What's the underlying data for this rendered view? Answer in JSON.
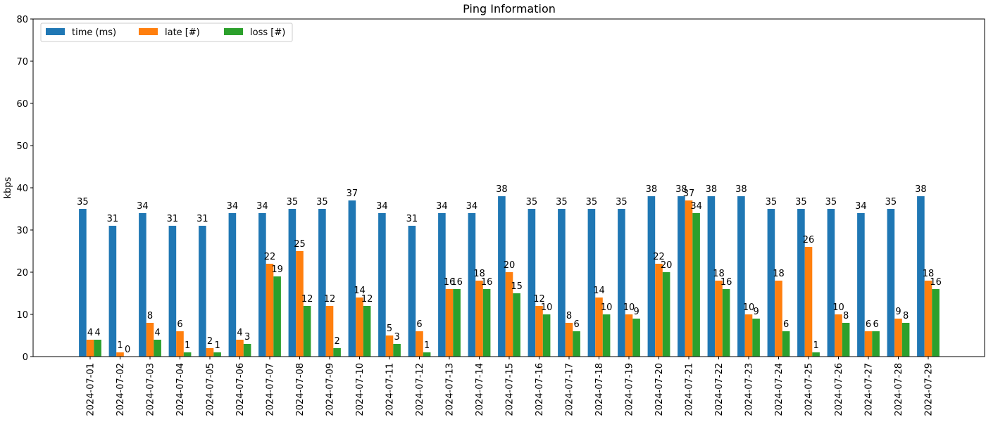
{
  "chart_data": {
    "type": "bar",
    "title": "Ping Information",
    "xlabel": "",
    "ylabel": "kbps",
    "ylim": [
      0,
      80
    ],
    "yticks": [
      0,
      10,
      20,
      30,
      40,
      50,
      60,
      70,
      80
    ],
    "grid": false,
    "legend_position": "top-left",
    "categories": [
      "2024-07-01",
      "2024-07-02",
      "2024-07-03",
      "2024-07-04",
      "2024-07-05",
      "2024-07-06",
      "2024-07-07",
      "2024-07-08",
      "2024-07-09",
      "2024-07-10",
      "2024-07-11",
      "2024-07-12",
      "2024-07-13",
      "2024-07-14",
      "2024-07-15",
      "2024-07-16",
      "2024-07-17",
      "2024-07-18",
      "2024-07-19",
      "2024-07-20",
      "2024-07-21",
      "2024-07-22",
      "2024-07-23",
      "2024-07-24",
      "2024-07-25",
      "2024-07-26",
      "2024-07-27",
      "2024-07-28",
      "2024-07-29"
    ],
    "series": [
      {
        "name": "time (ms)",
        "color": "#1f77b4",
        "values": [
          35,
          31,
          34,
          31,
          31,
          34,
          34,
          35,
          35,
          37,
          34,
          31,
          34,
          34,
          38,
          35,
          35,
          35,
          35,
          38,
          38,
          38,
          38,
          35,
          35,
          35,
          34,
          35,
          38
        ]
      },
      {
        "name": "late [#)",
        "color": "#ff7f0e",
        "values": [
          4,
          1,
          8,
          6,
          2,
          4,
          22,
          25,
          12,
          14,
          5,
          6,
          16,
          18,
          20,
          12,
          8,
          14,
          10,
          22,
          37,
          18,
          10,
          18,
          26,
          10,
          6,
          9,
          18
        ]
      },
      {
        "name": "loss [#)",
        "color": "#2ca02c",
        "values": [
          4,
          0,
          4,
          1,
          1,
          3,
          19,
          12,
          2,
          12,
          3,
          1,
          16,
          16,
          15,
          10,
          6,
          10,
          9,
          20,
          34,
          16,
          9,
          6,
          1,
          8,
          6,
          8,
          16
        ]
      }
    ]
  }
}
